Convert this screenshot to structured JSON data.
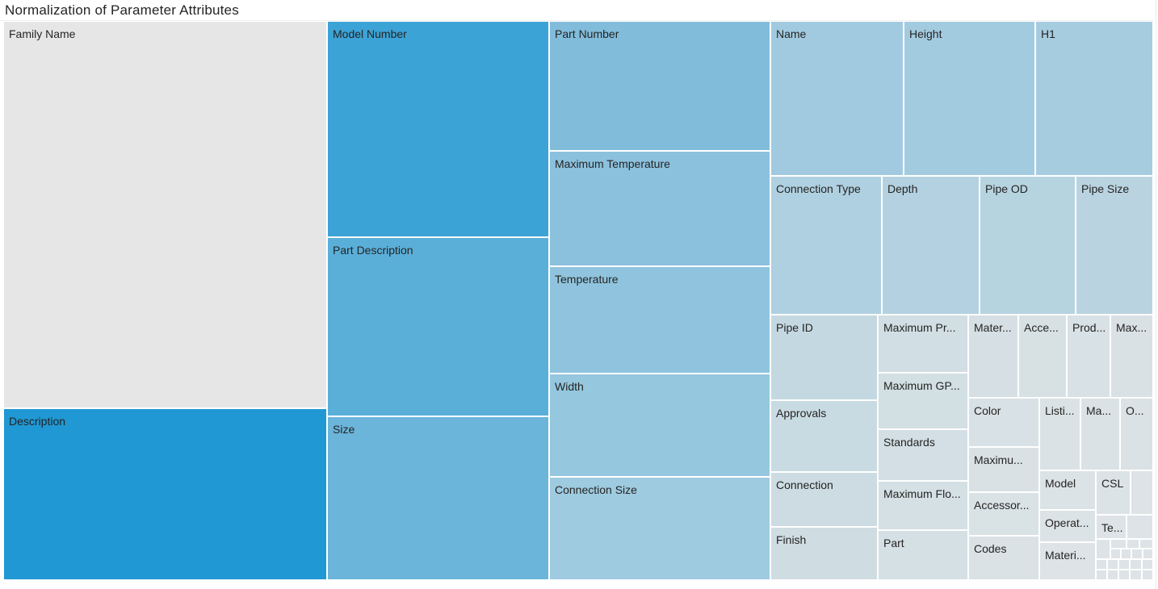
{
  "title": "Normalization of Parameter Attributes",
  "chart_data": {
    "type": "treemap",
    "title": "Normalization of Parameter Attributes",
    "value_unit": "relative area (estimated)",
    "color_scale": {
      "low": "#dbe1e5",
      "mid": "#9fcae0",
      "high": "#2098d4",
      "top_item_color": "#e6e6e7"
    },
    "items": [
      {
        "label": "Family Name",
        "value": 190000,
        "color": "#e6e6e7"
      },
      {
        "label": "Description",
        "value": 85000,
        "color": "#2098d4"
      },
      {
        "label": "Model Number",
        "value": 73000,
        "color": "#3ca3d6"
      },
      {
        "label": "Part Description",
        "value": 60500,
        "color": "#5aafd9"
      },
      {
        "label": "Size",
        "value": 55000,
        "color": "#6bb4da"
      },
      {
        "label": "Part Number",
        "value": 43500,
        "color": "#81bcdb"
      },
      {
        "label": "Maximum Temperature",
        "value": 38900,
        "color": "#8bc1dd"
      },
      {
        "label": "Temperature",
        "value": 36000,
        "color": "#90c4de"
      },
      {
        "label": "Width",
        "value": 35000,
        "color": "#95c7df"
      },
      {
        "label": "Connection Size",
        "value": 34200,
        "color": "#9ecbe0"
      },
      {
        "label": "Name",
        "value": 31300,
        "color": "#a1cae0"
      },
      {
        "label": "Height",
        "value": 31000,
        "color": "#a3cbe0"
      },
      {
        "label": "H1",
        "value": 27500,
        "color": "#a6cce0"
      },
      {
        "label": "Connection Type",
        "value": 23300,
        "color": "#afd0e0"
      },
      {
        "label": "Depth",
        "value": 20800,
        "color": "#b3d1e0"
      },
      {
        "label": "Pipe OD",
        "value": 20300,
        "color": "#b6d3e0"
      },
      {
        "label": "Pipe Size",
        "value": 16000,
        "color": "#b9d4e0"
      },
      {
        "label": "Pipe ID",
        "value": 13700,
        "color": "#c4d8e1"
      },
      {
        "label": "Approvals",
        "value": 11700,
        "color": "#c9dbe2"
      },
      {
        "label": "Connection",
        "value": 8800,
        "color": "#ccdce2"
      },
      {
        "label": "Finish",
        "value": 8200,
        "color": "#cfdde3"
      },
      {
        "label": "Maximum Pr...",
        "value": 8000,
        "color": "#d1dee3"
      },
      {
        "label": "Maximum GP...",
        "value": 7700,
        "color": "#d2dfe3"
      },
      {
        "label": "Standards",
        "value": 6900,
        "color": "#d3dfe4"
      },
      {
        "label": "Maximum Flo...",
        "value": 6700,
        "color": "#d4e0e4"
      },
      {
        "label": "Part",
        "value": 6700,
        "color": "#d5e0e4"
      },
      {
        "label": "Mater...",
        "value": 6000,
        "color": "#d6e0e4"
      },
      {
        "label": "Acce...",
        "value": 5900,
        "color": "#d7e1e4"
      },
      {
        "label": "Prod...",
        "value": 5400,
        "color": "#d8e1e5"
      },
      {
        "label": "Max...",
        "value": 5000,
        "color": "#d9e1e5"
      },
      {
        "label": "Color",
        "value": 5100,
        "color": "#d8e1e5"
      },
      {
        "label": "Maximu...",
        "value": 4800,
        "color": "#d9e1e5"
      },
      {
        "label": "Accessor...",
        "value": 4700,
        "color": "#d9e2e5"
      },
      {
        "label": "Codes",
        "value": 4600,
        "color": "#dae2e5"
      },
      {
        "label": "Listi...",
        "value": 4500,
        "color": "#dae2e5"
      },
      {
        "label": "Ma...",
        "value": 4200,
        "color": "#dbe2e5"
      },
      {
        "label": "O...",
        "value": 3400,
        "color": "#dbe2e5"
      },
      {
        "label": "Model",
        "value": 3300,
        "color": "#dce3e6"
      },
      {
        "label": "CSL",
        "value": 2200,
        "color": "#dce3e6"
      },
      {
        "label": "Operat...",
        "value": 2900,
        "color": "#dce3e6"
      },
      {
        "label": "Te...",
        "value": 1200,
        "color": "#dde3e6"
      },
      {
        "label": "Materi...",
        "value": 2800,
        "color": "#dde3e6"
      }
    ]
  }
}
